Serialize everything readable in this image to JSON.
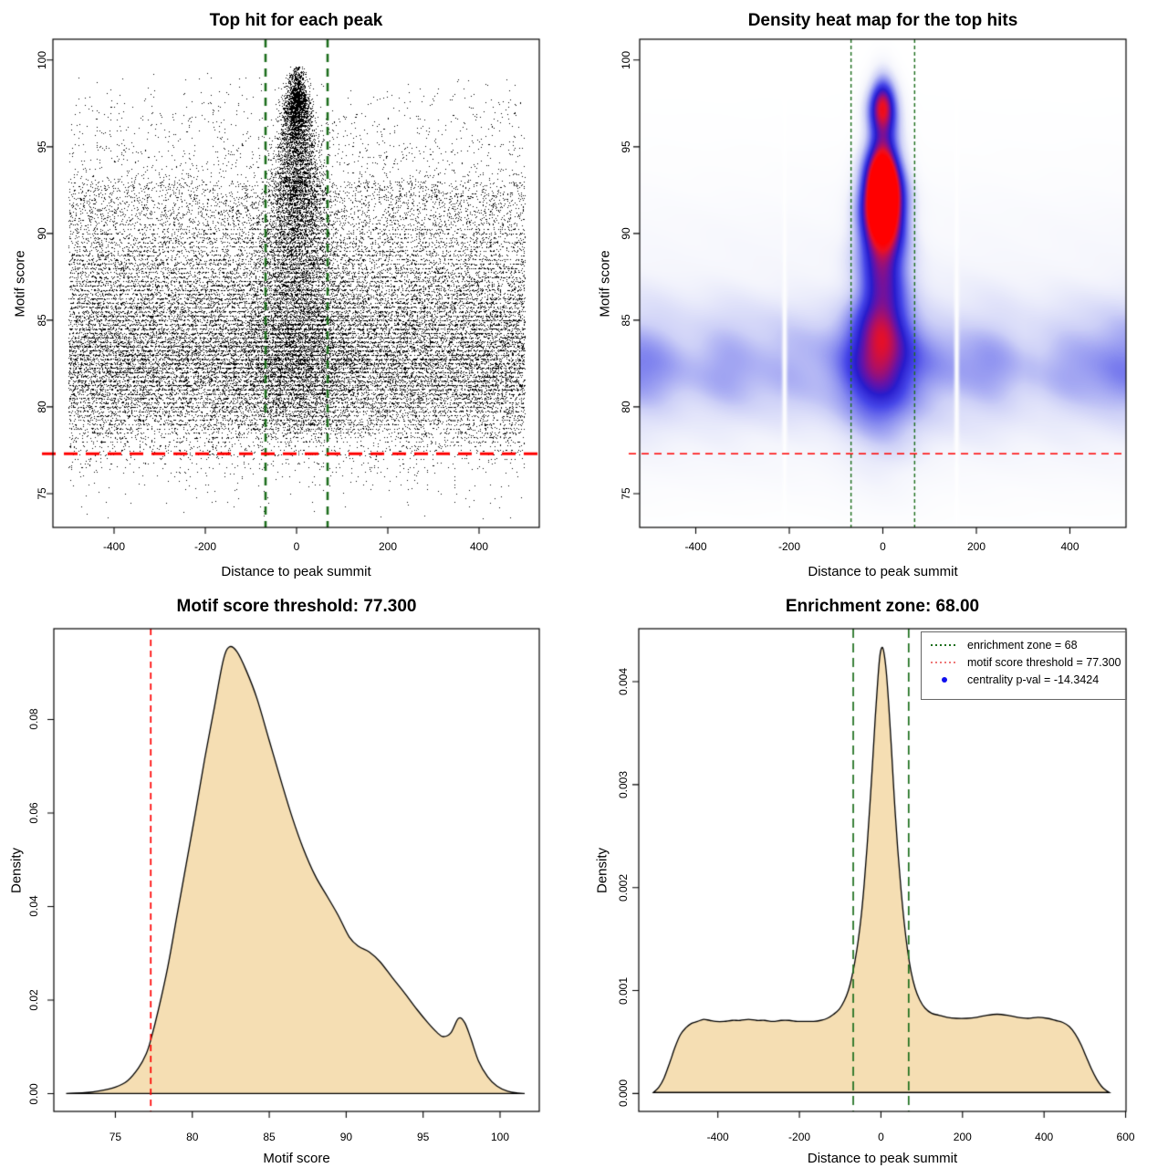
{
  "page": {
    "background": "#ffffff"
  },
  "colors": {
    "points": "#000000",
    "threshold_red": "#ff0000",
    "zone_green": "#1c6e1c",
    "density_fill": "#f5deb3",
    "curve_stroke": "#000000",
    "axis_color": "#000000",
    "legend_border": "#666666",
    "legend_dot_blue": "#1010ee",
    "legend_red": "#ee7777",
    "heatmap_stops": [
      [
        0.0,
        "#ffffff"
      ],
      [
        0.08,
        "#f4f5fc"
      ],
      [
        0.22,
        "#cdd0f7"
      ],
      [
        0.36,
        "#8c90f0"
      ],
      [
        0.5,
        "#4646e8"
      ],
      [
        0.62,
        "#281ccd"
      ],
      [
        0.72,
        "#6912a5"
      ],
      [
        0.82,
        "#b40f5f"
      ],
      [
        0.9,
        "#eb0f23"
      ],
      [
        1.0,
        "#ff0000"
      ]
    ]
  },
  "thresholds": {
    "motif_score": 77.3,
    "motif_score_label": "77.300",
    "enrichment_zone": 68,
    "enrichment_zone_label": "68.00",
    "centrality_p_val": -14.3424
  },
  "chart_data": [
    {
      "type": "scatter",
      "title": "Top hit for each peak",
      "xlabel": "Distance to peak summit",
      "ylabel": "Motif score",
      "xlim": [
        -534,
        532
      ],
      "ylim": [
        73.05,
        101.2
      ],
      "xticks": {
        "values": [
          -400,
          -200,
          0,
          200,
          400
        ],
        "labels": [
          "-400",
          "-200",
          "0",
          "200",
          "400"
        ]
      },
      "yticks": {
        "values": [
          75,
          80,
          85,
          90,
          95,
          100
        ],
        "labels": [
          "75",
          "80",
          "85",
          "90",
          "95",
          "100"
        ]
      },
      "grid": false,
      "point_color": "#000000",
      "hline_motif_threshold": 77.3,
      "vlines_enrichment_zone": [
        -68,
        68
      ],
      "generation": {
        "seed": 20240613,
        "n_background": 30000,
        "n_center": 9500,
        "stripe_scale": 900,
        "x_range": [
          -500,
          500
        ],
        "center_sigma_base": 7,
        "center_sigma_slope": 3.0,
        "center_sigma_max": 60,
        "stripe_grid": 0.25,
        "y_marginal_source": "chart_data[2].curve",
        "center_y_extra_modes": [
          {
            "mean": 93.2,
            "sd": 3.3,
            "w": 0.03
          },
          {
            "mean": 97.35,
            "sd": 0.95,
            "w": 0.042
          }
        ]
      }
    },
    {
      "type": "heatmap",
      "title": "Density heat map for the top hits",
      "xlabel": "Distance to peak summit",
      "ylabel": "Motif score",
      "xlim": [
        -520,
        520
      ],
      "ylim": [
        73.05,
        101.2
      ],
      "xticks": {
        "values": [
          -400,
          -200,
          0,
          200,
          400
        ],
        "labels": [
          "-400",
          "-200",
          "0",
          "200",
          "400"
        ]
      },
      "yticks": {
        "values": [
          75,
          80,
          85,
          90,
          95,
          100
        ],
        "labels": [
          "75",
          "80",
          "85",
          "90",
          "95",
          "100"
        ]
      },
      "hline_motif_threshold": 77.3,
      "vlines_enrichment_zone": [
        -68,
        68
      ],
      "white_gap_x": [
        -210,
        158
      ],
      "field": {
        "normalize": 1.55,
        "gamma": 0.92,
        "band": {
          "y0": 82.4,
          "sigma": 2.1,
          "amp": 0.48
        },
        "halo": {
          "y0": 85.5,
          "sigma": 4.8,
          "amp": 0.1
        },
        "skirt": {
          "y0": 78.5,
          "sigma": 2.5,
          "amp": 0.06
        },
        "column_sigma_x": {
          "base": 17,
          "slope": 1.55,
          "min": 12
        },
        "column_modes": [
          {
            "mean": 85.5,
            "sd": 4.2,
            "w": 0.95
          },
          {
            "mean": 92.2,
            "sd": 2.0,
            "w": 2.3
          },
          {
            "mean": 97.4,
            "sd": 1.1,
            "w": 1.15
          },
          {
            "mean": 95.2,
            "sd": 2.0,
            "w": 0.25
          }
        ]
      }
    },
    {
      "type": "area",
      "title": "Motif score threshold: 77.300",
      "xlabel": "Motif score",
      "ylabel": "Density",
      "xlim": [
        71.0,
        102.55
      ],
      "ylim": [
        -0.0038,
        0.0994
      ],
      "xticks": {
        "values": [
          75,
          80,
          85,
          90,
          95,
          100
        ],
        "labels": [
          "75",
          "80",
          "85",
          "90",
          "95",
          "100"
        ]
      },
      "yticks": {
        "values": [
          0,
          0.02,
          0.04,
          0.06,
          0.08
        ],
        "labels": [
          "0.00",
          "0.02",
          "0.04",
          "0.06",
          "0.08"
        ]
      },
      "fill": "#f5deb3",
      "vline_motif_threshold": 77.3,
      "curve": [
        [
          71.8,
          3e-05
        ],
        [
          73.0,
          0.0002
        ],
        [
          74.0,
          0.0006
        ],
        [
          75.0,
          0.0014
        ],
        [
          75.8,
          0.0028
        ],
        [
          76.5,
          0.0055
        ],
        [
          77.0,
          0.0085
        ],
        [
          77.3,
          0.0115
        ],
        [
          77.8,
          0.018
        ],
        [
          78.4,
          0.027
        ],
        [
          79.0,
          0.038
        ],
        [
          79.6,
          0.049
        ],
        [
          80.2,
          0.06
        ],
        [
          80.8,
          0.0715
        ],
        [
          81.4,
          0.082
        ],
        [
          82.0,
          0.0925
        ],
        [
          82.4,
          0.0955
        ],
        [
          82.9,
          0.0945
        ],
        [
          83.5,
          0.0905
        ],
        [
          84.2,
          0.0845
        ],
        [
          85.0,
          0.0755
        ],
        [
          85.8,
          0.0665
        ],
        [
          86.5,
          0.059
        ],
        [
          87.2,
          0.0525
        ],
        [
          88.0,
          0.0465
        ],
        [
          88.8,
          0.042
        ],
        [
          89.5,
          0.038
        ],
        [
          90.2,
          0.0335
        ],
        [
          90.8,
          0.0315
        ],
        [
          91.5,
          0.0303
        ],
        [
          92.2,
          0.0282
        ],
        [
          93.0,
          0.0248
        ],
        [
          93.8,
          0.0215
        ],
        [
          94.6,
          0.018
        ],
        [
          95.3,
          0.0152
        ],
        [
          95.9,
          0.0131
        ],
        [
          96.3,
          0.0122
        ],
        [
          96.8,
          0.013
        ],
        [
          97.3,
          0.0161
        ],
        [
          97.7,
          0.0152
        ],
        [
          98.1,
          0.0118
        ],
        [
          98.6,
          0.007
        ],
        [
          99.2,
          0.0036
        ],
        [
          99.8,
          0.0016
        ],
        [
          100.5,
          0.0005
        ],
        [
          101.2,
          0.0001
        ],
        [
          101.6,
          2e-05
        ]
      ]
    },
    {
      "type": "area",
      "title": "Enrichment zone: 68.00",
      "xlabel": "Distance to peak summit",
      "ylabel": "Density",
      "xlim": [
        -594,
        601
      ],
      "ylim": [
        -0.000174,
        0.004514
      ],
      "xticks": {
        "values": [
          -400,
          -200,
          0,
          200,
          400,
          600
        ],
        "labels": [
          "-400",
          "-200",
          "0",
          "200",
          "400",
          "600"
        ]
      },
      "yticks": {
        "values": [
          0,
          0.001,
          0.002,
          0.003,
          0.004
        ],
        "labels": [
          "0.000",
          "0.001",
          "0.002",
          "0.003",
          "0.004"
        ]
      },
      "fill": "#f5deb3",
      "vlines_enrichment_zone": [
        -68,
        68
      ],
      "legend": {
        "items": [
          {
            "label": "enrichment zone = 68",
            "symbol": "dotted-line",
            "color": "#1c6e1c"
          },
          {
            "label": "motif score threshold = 77.300",
            "symbol": "dotted-line",
            "color": "#ee7777"
          },
          {
            "label": "centrality p-val = -14.3424",
            "symbol": "dot",
            "color": "#1010ee"
          }
        ]
      },
      "curve": [
        [
          -558,
          1e-05
        ],
        [
          -545,
          6e-05
        ],
        [
          -532,
          0.00015
        ],
        [
          -518,
          0.0003
        ],
        [
          -505,
          0.00045
        ],
        [
          -492,
          0.00057
        ],
        [
          -478,
          0.00064
        ],
        [
          -465,
          0.00068
        ],
        [
          -450,
          0.0007
        ],
        [
          -435,
          0.00072
        ],
        [
          -420,
          0.00071
        ],
        [
          -405,
          0.0007
        ],
        [
          -385,
          0.0007
        ],
        [
          -365,
          0.00071
        ],
        [
          -345,
          0.00071
        ],
        [
          -325,
          0.00072
        ],
        [
          -305,
          0.00071
        ],
        [
          -285,
          0.00071
        ],
        [
          -265,
          0.0007
        ],
        [
          -245,
          0.00071
        ],
        [
          -225,
          0.00071
        ],
        [
          -205,
          0.0007
        ],
        [
          -185,
          0.0007
        ],
        [
          -165,
          0.0007
        ],
        [
          -148,
          0.00071
        ],
        [
          -132,
          0.00073
        ],
        [
          -116,
          0.00077
        ],
        [
          -102,
          0.00082
        ],
        [
          -90,
          0.0009
        ],
        [
          -80,
          0.001
        ],
        [
          -72,
          0.00112
        ],
        [
          -64,
          0.00128
        ],
        [
          -56,
          0.00148
        ],
        [
          -48,
          0.00174
        ],
        [
          -41,
          0.00204
        ],
        [
          -34,
          0.0024
        ],
        [
          -27,
          0.00281
        ],
        [
          -20,
          0.00325
        ],
        [
          -14,
          0.00365
        ],
        [
          -8,
          0.004
        ],
        [
          -3,
          0.00424
        ],
        [
          2,
          0.00433
        ],
        [
          7,
          0.00429
        ],
        [
          13,
          0.0041
        ],
        [
          19,
          0.00378
        ],
        [
          26,
          0.00333
        ],
        [
          33,
          0.00285
        ],
        [
          41,
          0.00238
        ],
        [
          49,
          0.00199
        ],
        [
          57,
          0.00166
        ],
        [
          65,
          0.0014
        ],
        [
          74,
          0.00118
        ],
        [
          84,
          0.00102
        ],
        [
          95,
          0.00091
        ],
        [
          108,
          0.00083
        ],
        [
          124,
          0.00078
        ],
        [
          142,
          0.00076
        ],
        [
          162,
          0.00074
        ],
        [
          185,
          0.00073
        ],
        [
          210,
          0.00073
        ],
        [
          235,
          0.00074
        ],
        [
          260,
          0.00076
        ],
        [
          285,
          0.00077
        ],
        [
          310,
          0.00076
        ],
        [
          335,
          0.00074
        ],
        [
          360,
          0.00073
        ],
        [
          385,
          0.00074
        ],
        [
          408,
          0.00073
        ],
        [
          428,
          0.00071
        ],
        [
          446,
          0.00069
        ],
        [
          462,
          0.00065
        ],
        [
          476,
          0.00058
        ],
        [
          490,
          0.00048
        ],
        [
          503,
          0.00036
        ],
        [
          516,
          0.00024
        ],
        [
          529,
          0.00014
        ],
        [
          541,
          7e-05
        ],
        [
          552,
          3e-05
        ],
        [
          560,
          1e-05
        ]
      ]
    }
  ]
}
